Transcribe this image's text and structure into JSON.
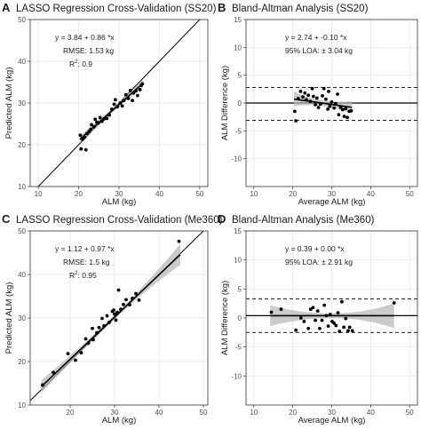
{
  "chart_data": [
    {
      "id": "A",
      "letter": "A",
      "type": "scatter",
      "title": "LASSO Regression Cross-Validation (SS20)",
      "xlabel": "ALM (kg)",
      "ylabel": "Predicted ALM (kg)",
      "xlim": [
        8,
        52
      ],
      "ylim": [
        10,
        50
      ],
      "xticks": [
        10,
        20,
        30,
        40,
        50
      ],
      "yticks": [
        10,
        20,
        30,
        40,
        50
      ],
      "grid": true,
      "identity_line": true,
      "fit": {
        "intercept": 3.84,
        "slope": 0.86,
        "x_range": [
          20.3,
          35.9
        ],
        "band_half_width": [
          0.9,
          0.6,
          0.9
        ]
      },
      "annotations": [
        "y  =  3.84 + 0.86 *x",
        "RMSE: 1.53 kg",
        "R^2: 0.9"
      ],
      "points": [
        [
          20.4,
          22.3
        ],
        [
          20.6,
          19.0
        ],
        [
          21.0,
          21.3
        ],
        [
          21.5,
          21.8
        ],
        [
          21.8,
          18.8
        ],
        [
          22.1,
          22.7
        ],
        [
          22.6,
          23.2
        ],
        [
          23.0,
          23.7
        ],
        [
          23.2,
          24.8
        ],
        [
          23.8,
          24.3
        ],
        [
          24.1,
          26.1
        ],
        [
          24.5,
          25.4
        ],
        [
          24.9,
          25.2
        ],
        [
          25.3,
          26.5
        ],
        [
          25.8,
          25.6
        ],
        [
          26.3,
          26.2
        ],
        [
          27.0,
          26.3
        ],
        [
          27.6,
          27.1
        ],
        [
          28.2,
          28.5
        ],
        [
          28.8,
          29.7
        ],
        [
          29.1,
          30.8
        ],
        [
          29.6,
          29.1
        ],
        [
          30.3,
          30.0
        ],
        [
          30.8,
          29.3
        ],
        [
          31.2,
          30.6
        ],
        [
          31.7,
          32.0
        ],
        [
          32.3,
          31.1
        ],
        [
          32.8,
          33.0
        ],
        [
          33.3,
          30.6
        ],
        [
          33.6,
          32.4
        ],
        [
          34.2,
          32.9
        ],
        [
          34.6,
          31.8
        ],
        [
          35.2,
          33.2
        ],
        [
          35.8,
          34.6
        ],
        [
          35.5,
          34.2
        ]
      ]
    },
    {
      "id": "B",
      "letter": "B",
      "type": "scatter",
      "title": "Bland-Altman Analysis (SS20)",
      "xlabel": "Average ALM (kg)",
      "ylabel": "ALM Difference (kg)",
      "xlim": [
        8,
        52
      ],
      "ylim": [
        -15,
        15
      ],
      "xticks": [
        10,
        20,
        30,
        40,
        50
      ],
      "yticks": [
        -10,
        -5,
        0,
        5,
        10,
        15
      ],
      "grid": true,
      "mean_line": 0,
      "loa": [
        2.8,
        -3.1
      ],
      "fit": {
        "intercept": 2.74,
        "slope": -0.1,
        "x_range": [
          20.3,
          35.2
        ],
        "band_half_width": [
          1.3,
          0.5,
          1.1
        ]
      },
      "annotations": [
        "y  =  2.74 + -0.10 *x",
        "95% LOA: ± 3.04 kg"
      ],
      "points": [
        [
          20.5,
          -1.5
        ],
        [
          20.8,
          -3.2
        ],
        [
          21.4,
          0.8
        ],
        [
          22.0,
          2.1
        ],
        [
          22.6,
          1.1
        ],
        [
          23.1,
          1.8
        ],
        [
          23.5,
          0.6
        ],
        [
          24.0,
          1.4
        ],
        [
          24.5,
          0.3
        ],
        [
          25.0,
          2.6
        ],
        [
          25.3,
          1.2
        ],
        [
          25.8,
          -0.3
        ],
        [
          26.2,
          0.9
        ],
        [
          26.6,
          -0.8
        ],
        [
          27.1,
          -0.2
        ],
        [
          27.6,
          1.3
        ],
        [
          28.0,
          2.6
        ],
        [
          28.5,
          0.7
        ],
        [
          29.0,
          -1.1
        ],
        [
          29.5,
          -0.6
        ],
        [
          30.0,
          0.2
        ],
        [
          30.6,
          -0.9
        ],
        [
          31.0,
          -0.1
        ],
        [
          31.5,
          1.6
        ],
        [
          31.8,
          -2.1
        ],
        [
          32.3,
          -0.8
        ],
        [
          32.8,
          -1.2
        ],
        [
          33.2,
          -2.4
        ],
        [
          33.6,
          -1.0
        ],
        [
          34.0,
          -2.6
        ],
        [
          34.5,
          -1.5
        ],
        [
          35.0,
          -1.4
        ],
        [
          29.2,
          2.1
        ]
      ]
    },
    {
      "id": "C",
      "letter": "C",
      "type": "scatter",
      "title": "LASSO Regression Cross-Validation (Me360)",
      "xlabel": "ALM (kg)",
      "ylabel": "Predicted ALM (kg)",
      "xlim": [
        11,
        51
      ],
      "ylim": [
        10,
        50
      ],
      "xticks": [
        10,
        20,
        30,
        40,
        50
      ],
      "yticks": [
        10,
        20,
        30,
        40,
        50
      ],
      "grid": true,
      "identity_line": true,
      "fit": {
        "intercept": 1.12,
        "slope": 0.97,
        "x_range": [
          13.5,
          44.8
        ],
        "band_half_width": [
          1.5,
          0.5,
          2.4
        ]
      },
      "annotations": [
        "y  =  1.12 + 0.97 *x",
        "RMSE: 1.5 kg",
        "R^2: 0.95"
      ],
      "points": [
        [
          13.8,
          14.6
        ],
        [
          16.2,
          17.5
        ],
        [
          19.5,
          21.8
        ],
        [
          21.2,
          20.3
        ],
        [
          22.5,
          22.0
        ],
        [
          23.5,
          25.2
        ],
        [
          24.1,
          24.2
        ],
        [
          25.0,
          27.6
        ],
        [
          25.2,
          25.0
        ],
        [
          26.0,
          26.6
        ],
        [
          26.5,
          27.8
        ],
        [
          27.2,
          29.9
        ],
        [
          27.6,
          28.2
        ],
        [
          28.3,
          30.5
        ],
        [
          28.8,
          29.0
        ],
        [
          29.5,
          31.5
        ],
        [
          30.0,
          30.9
        ],
        [
          30.3,
          29.5
        ],
        [
          30.6,
          31.3
        ],
        [
          30.9,
          36.4
        ],
        [
          31.4,
          32.0
        ],
        [
          32.0,
          33.1
        ],
        [
          32.6,
          34.2
        ],
        [
          33.4,
          33.0
        ],
        [
          34.0,
          34.5
        ],
        [
          34.8,
          35.6
        ],
        [
          35.5,
          34.1
        ],
        [
          44.5,
          47.6
        ],
        [
          29.8,
          31.8
        ]
      ]
    },
    {
      "id": "D",
      "letter": "D",
      "type": "scatter",
      "title": "Bland-Altman Analysis (Me360)",
      "xlabel": "Average ALM (kg)",
      "ylabel": "ALM Difference (kg)",
      "xlim": [
        8,
        52
      ],
      "ylim": [
        -15,
        15
      ],
      "xticks": [
        10,
        20,
        30,
        40,
        50
      ],
      "yticks": [
        -10,
        -5,
        0,
        5,
        10,
        15
      ],
      "grid": true,
      "mean_line": 0.4,
      "loa": [
        3.3,
        -2.5
      ],
      "fit": {
        "intercept": 0.39,
        "slope": 0.0,
        "x_range": [
          14.2,
          46.0
        ],
        "band_half_width": [
          1.8,
          0.4,
          2.1
        ]
      },
      "annotations": [
        "y  =  0.39 + 0.00 *x",
        "95% LOA: ± 2.91 kg"
      ],
      "points": [
        [
          14.5,
          1.0
        ],
        [
          17.0,
          1.5
        ],
        [
          20.8,
          -2.1
        ],
        [
          22.1,
          0.0
        ],
        [
          22.9,
          -0.6
        ],
        [
          24.0,
          -1.8
        ],
        [
          24.6,
          1.5
        ],
        [
          25.2,
          1.8
        ],
        [
          25.8,
          -0.4
        ],
        [
          26.4,
          1.2
        ],
        [
          26.9,
          -1.8
        ],
        [
          27.5,
          -0.4
        ],
        [
          28.1,
          2.2
        ],
        [
          28.6,
          0.4
        ],
        [
          29.1,
          -1.4
        ],
        [
          29.6,
          0.6
        ],
        [
          30.1,
          -0.6
        ],
        [
          30.6,
          -0.9
        ],
        [
          31.1,
          -1.3
        ],
        [
          31.6,
          0.9
        ],
        [
          32.0,
          -2.3
        ],
        [
          32.6,
          2.8
        ],
        [
          33.1,
          -1.6
        ],
        [
          33.6,
          -0.1
        ],
        [
          34.2,
          -2.2
        ],
        [
          34.6,
          -1.6
        ],
        [
          35.3,
          -2.2
        ],
        [
          46.0,
          2.6
        ]
      ]
    }
  ]
}
